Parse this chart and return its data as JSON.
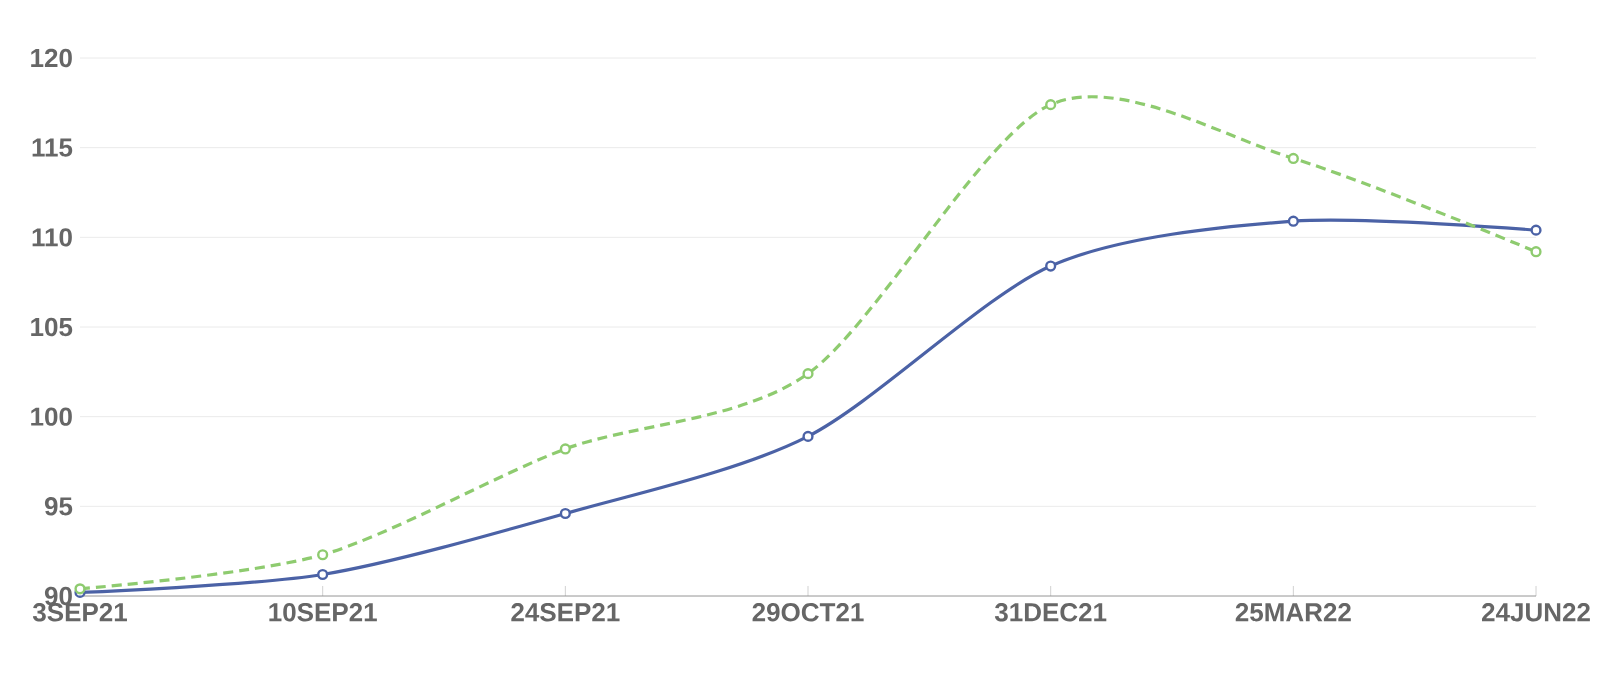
{
  "chart_data": {
    "type": "line",
    "categories": [
      "3SEP21",
      "10SEP21",
      "24SEP21",
      "29OCT21",
      "31DEC21",
      "25MAR22",
      "24JUN22"
    ],
    "series": [
      {
        "color": "#4b62a6",
        "line_style": "solid",
        "values": [
          90.2,
          91.2,
          94.6,
          98.9,
          108.4,
          110.9,
          110.4
        ]
      },
      {
        "color": "#8ecb6f",
        "line_style": "dashed",
        "values": [
          90.4,
          92.3,
          98.2,
          102.4,
          117.4,
          114.4,
          109.2
        ]
      }
    ],
    "ylim": [
      90,
      120
    ],
    "yticks": [
      90,
      95,
      100,
      105,
      110,
      115,
      120
    ],
    "grid": "y",
    "marker": "circle"
  }
}
